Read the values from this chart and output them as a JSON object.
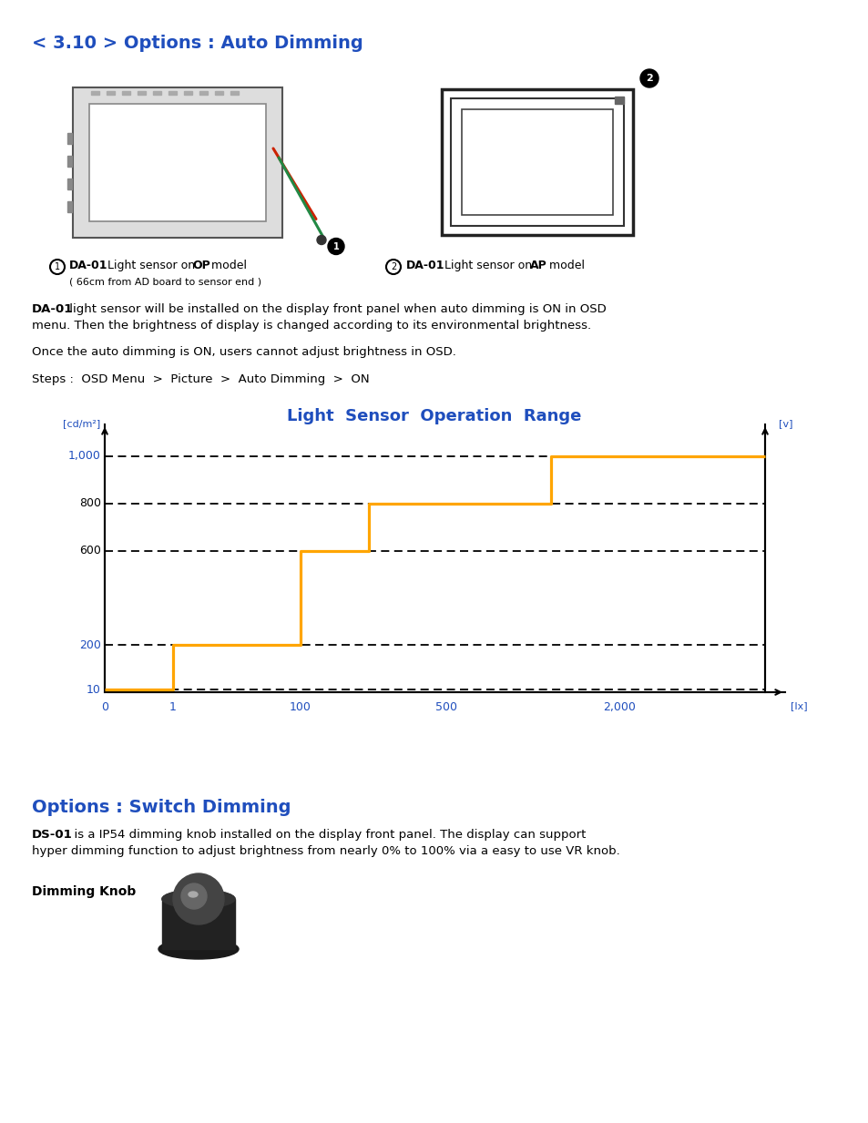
{
  "title": "< 3.10 > Options : Auto Dimming",
  "title_color": "#1F4EBD",
  "title_fontsize": 14,
  "bg_color": "#FFFFFF",
  "section2_title": "Options : Switch Dimming",
  "section2_color": "#1F4EBD",
  "graph_title": "Light  Sensor  Operation  Range",
  "graph_title_color": "#1F4EBD",
  "graph_title_fontsize": 13,
  "da01_op_subtext": "( 66cm from AD board to sensor end )",
  "body_text2": "Once the auto dimming is ON, users cannot adjust brightness in OSD.",
  "body_text3": "Steps :  OSD Menu  >  Picture  >  Auto Dimming  >  ON",
  "dimming_knob_label": "Dimming Knob",
  "graph_y_left_label": "[cd/m²]",
  "graph_y_right_label": "[v]",
  "orange_color": "#FFA500",
  "blue_tick_color": "#1F4EBD",
  "text_color": "#000000",
  "font_size_body": 9.5,
  "font_size_axis": 9
}
